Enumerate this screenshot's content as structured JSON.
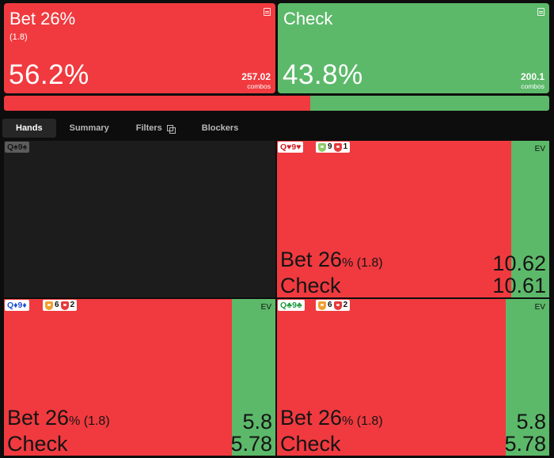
{
  "summary": {
    "bet": {
      "name": "Bet 26%",
      "size": "(1.8)",
      "pct": "56.2%",
      "combos_value": "257.02",
      "combos_label": "combos",
      "color": "#f03a3f"
    },
    "check": {
      "name": "Check",
      "pct": "43.8%",
      "combos_value": "200.1",
      "combos_label": "combos",
      "color": "#5cb96a"
    },
    "bar_bet_fraction": 0.562
  },
  "tabs": [
    {
      "label": "Hands",
      "active": true
    },
    {
      "label": "Summary",
      "active": false
    },
    {
      "label": "Filters",
      "active": false,
      "icon": "copy-icon"
    },
    {
      "label": "Blockers",
      "active": false
    }
  ],
  "hands": [
    {
      "hand": [
        "Q",
        "♠",
        "9",
        "♠"
      ],
      "suit": "spades",
      "empty": true
    },
    {
      "hand": [
        "Q",
        "♥",
        "9",
        "♥"
      ],
      "suit": "hearts",
      "badges": [
        "9",
        "1"
      ],
      "ev_label": "EV",
      "bet_fraction": 0.86,
      "bet_label": "Bet 26",
      "unit": "%",
      "size": " (1.8)",
      "check_label": "Check",
      "bet_ev": "10.62",
      "check_ev": "10.61"
    },
    {
      "hand": [
        "Q",
        "♦",
        "9",
        "♦"
      ],
      "suit": "diamonds",
      "badges": [
        "6",
        "2"
      ],
      "ev_label": "EV",
      "bet_fraction": 0.84,
      "bet_label": "Bet 26",
      "unit": "%",
      "size": " (1.8)",
      "check_label": "Check",
      "bet_ev": "5.8",
      "check_ev": "5.78"
    },
    {
      "hand": [
        "Q",
        "♣",
        "9",
        "♣"
      ],
      "suit": "clubs",
      "badges": [
        "6",
        "2"
      ],
      "ev_label": "EV",
      "bet_fraction": 0.84,
      "bet_label": "Bet 26",
      "unit": "%",
      "size": " (1.8)",
      "check_label": "Check",
      "bet_ev": "5.8",
      "check_ev": "5.78"
    }
  ]
}
